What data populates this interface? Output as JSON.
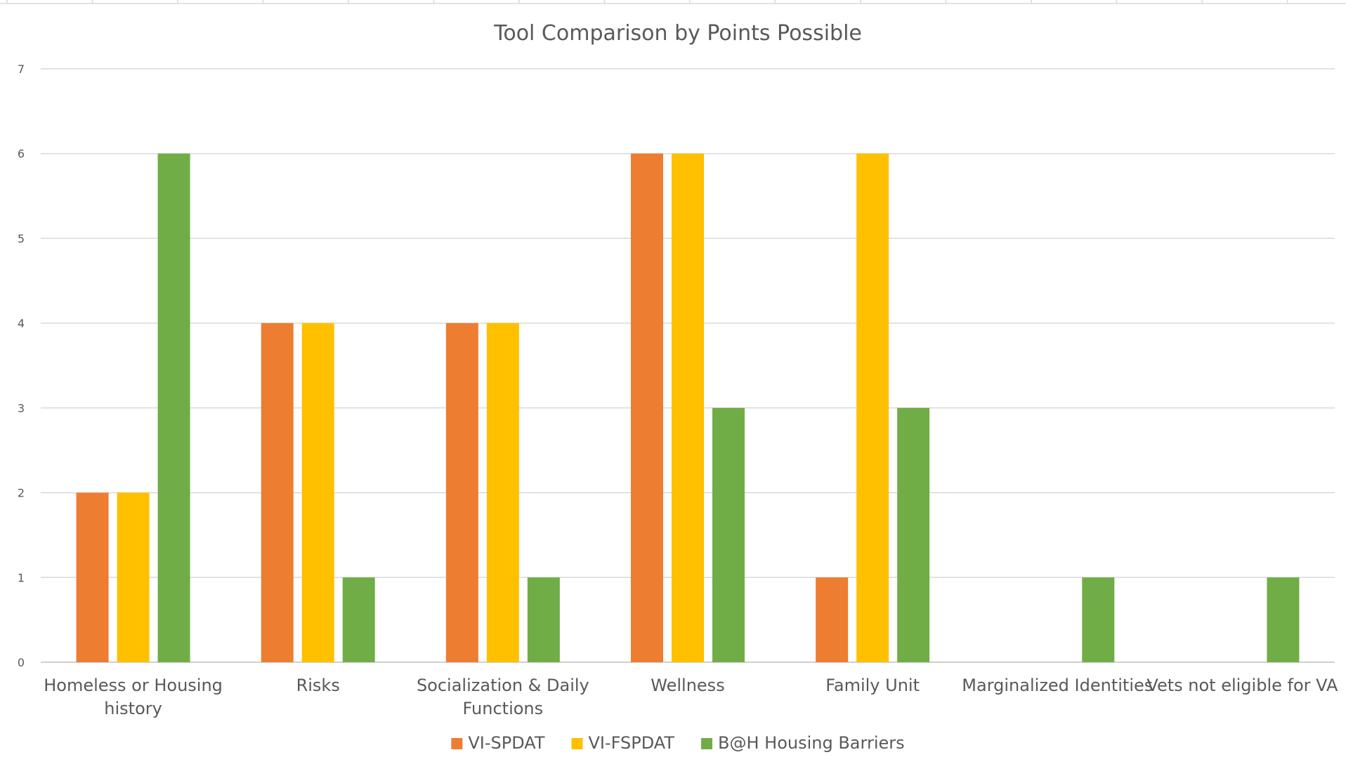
{
  "chart_data": {
    "type": "bar",
    "title": "Tool Comparison by Points Possible",
    "xlabel": "",
    "ylabel": "",
    "ylim": [
      0,
      7
    ],
    "yticks": [
      "0",
      "1",
      "2",
      "3",
      "4",
      "5",
      "6",
      "7"
    ],
    "grid": true,
    "legend_position": "bottom",
    "categories": [
      [
        "Homeless or Housing",
        "history"
      ],
      [
        "Risks"
      ],
      [
        "Socialization & Daily",
        "Functions"
      ],
      [
        "Wellness"
      ],
      [
        "Family Unit"
      ],
      [
        "Marginalized Identities"
      ],
      [
        "Vets not eligible for VA"
      ]
    ],
    "series": [
      {
        "name": "VI-SPDAT",
        "color": "#ED7D31",
        "values": [
          2,
          4,
          4,
          6,
          1,
          0,
          0
        ]
      },
      {
        "name": "VI-FSPDAT",
        "color": "#FFC000",
        "values": [
          2,
          4,
          4,
          6,
          6,
          0,
          0
        ]
      },
      {
        "name": "B@H Housing Barriers",
        "color": "#70AD47",
        "values": [
          6,
          1,
          1,
          3,
          3,
          1,
          1
        ]
      }
    ]
  }
}
